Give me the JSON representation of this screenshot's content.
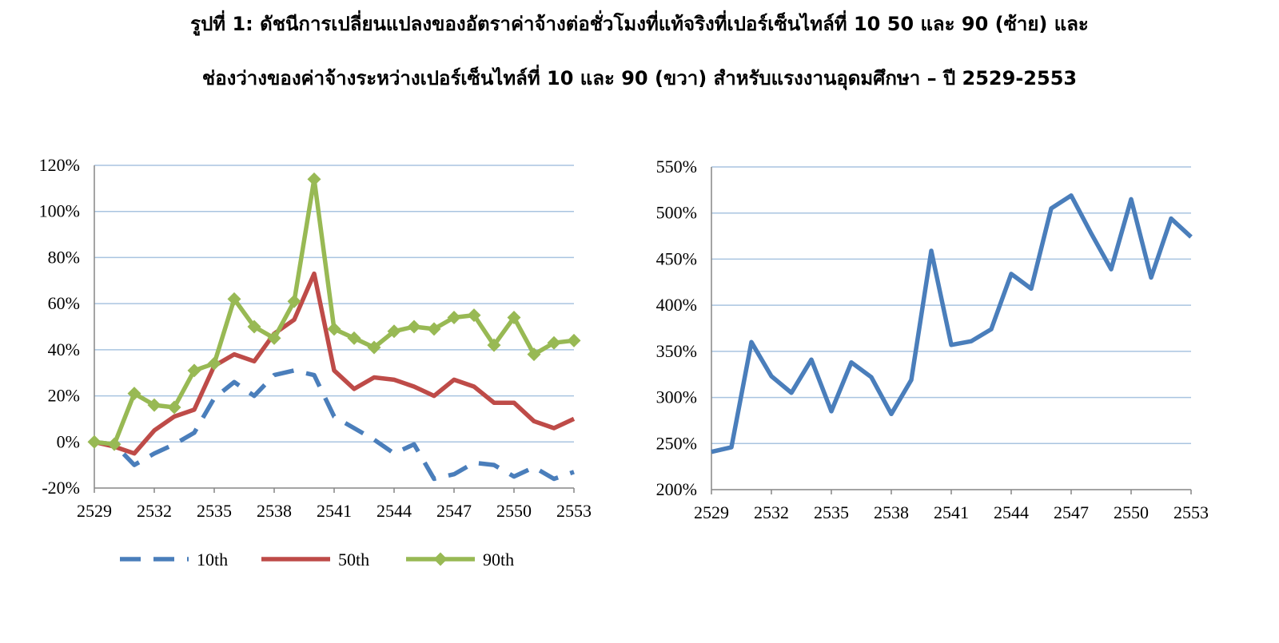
{
  "title": {
    "line1": "รูปที่ 1: ดัชนีการเปลี่ยนแปลงของอัตราค่าจ้างต่อชั่วโมงที่แท้จริงที่เปอร์เซ็นไทล์ที่ 10 50 และ 90 (ซ้าย) และ",
    "line2": "ช่องว่างของค่าจ้างระหว่างเปอร์เซ็นไทล์ที่ 10 และ 90 (ขวา) สำหรับแรงงานอุดมศึกษา – ปี 2529-2553"
  },
  "chart_data": [
    {
      "type": "line",
      "x": [
        2529,
        2530,
        2531,
        2532,
        2533,
        2534,
        2535,
        2536,
        2537,
        2538,
        2539,
        2540,
        2541,
        2542,
        2543,
        2544,
        2545,
        2546,
        2547,
        2548,
        2549,
        2550,
        2551,
        2552,
        2553
      ],
      "x_ticks": [
        "2529",
        "2532",
        "2535",
        "2538",
        "2541",
        "2544",
        "2547",
        "2550",
        "2553"
      ],
      "ylim": [
        -20,
        120
      ],
      "y_ticks": [
        "-20%",
        "0%",
        "20%",
        "40%",
        "60%",
        "80%",
        "100%",
        "120%"
      ],
      "y_unit": "%",
      "grid": true,
      "legend_position": "bottom",
      "series": [
        {
          "name": "10th",
          "color": "#4a7ebb",
          "style": "dashed",
          "values": [
            0,
            -1,
            -10,
            -5,
            -1,
            4,
            19,
            26,
            20,
            29,
            31,
            29,
            11,
            6,
            1,
            -5,
            -1,
            -16,
            -14,
            -9,
            -10,
            -15,
            -11,
            -16,
            -13
          ]
        },
        {
          "name": "50th",
          "color": "#be4b48",
          "style": "solid",
          "values": [
            0,
            -2,
            -5,
            5,
            11,
            14,
            33,
            38,
            35,
            47,
            53,
            73,
            31,
            23,
            28,
            27,
            24,
            20,
            27,
            24,
            17,
            17,
            9,
            6,
            10
          ]
        },
        {
          "name": "90th",
          "color": "#98b954",
          "style": "solid-diamond",
          "values": [
            0,
            -1,
            21,
            16,
            15,
            31,
            34,
            62,
            50,
            45,
            61,
            114,
            49,
            45,
            41,
            48,
            50,
            49,
            54,
            55,
            42,
            54,
            38,
            43,
            44
          ]
        }
      ]
    },
    {
      "type": "line",
      "x": [
        2529,
        2530,
        2531,
        2532,
        2533,
        2534,
        2535,
        2536,
        2537,
        2538,
        2539,
        2540,
        2541,
        2542,
        2543,
        2544,
        2545,
        2546,
        2547,
        2548,
        2549,
        2550,
        2551,
        2552,
        2553
      ],
      "x_ticks": [
        "2529",
        "2532",
        "2535",
        "2538",
        "2541",
        "2544",
        "2547",
        "2550",
        "2553"
      ],
      "ylim": [
        200,
        550
      ],
      "y_ticks": [
        "200%",
        "250%",
        "300%",
        "350%",
        "400%",
        "450%",
        "500%",
        "550%"
      ],
      "y_unit": "%",
      "grid": true,
      "series": [
        {
          "color": "#4a7ebb",
          "style": "solid",
          "values": [
            241,
            246,
            360,
            323,
            305,
            341,
            285,
            338,
            322,
            282,
            319,
            459,
            357,
            361,
            374,
            434,
            418,
            505,
            519,
            478,
            439,
            515,
            430,
            494,
            474
          ]
        }
      ]
    }
  ]
}
